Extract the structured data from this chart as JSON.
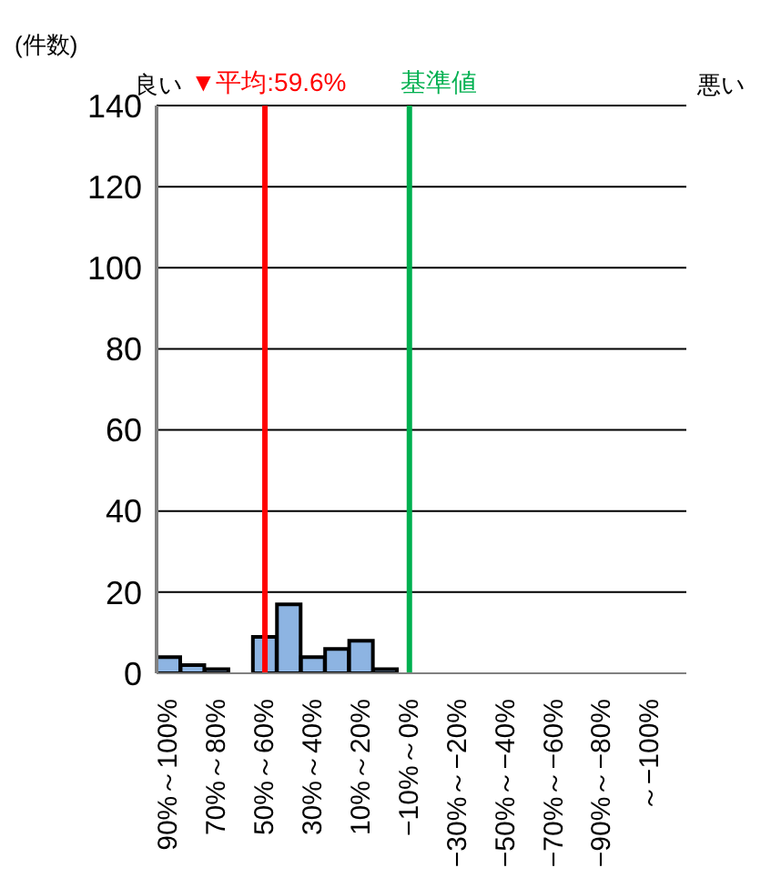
{
  "chart_data": {
    "type": "bar",
    "ylabel": "(件数)",
    "categories": [
      "90%～100%",
      null,
      "70%～80%",
      null,
      "50%～60%",
      null,
      "30%～40%",
      null,
      "10%～20%",
      null,
      "−10%～0%",
      null,
      "−30%～−20%",
      null,
      "−50%～−40%",
      null,
      "−70%～−60%",
      null,
      "−90%～−80%",
      null,
      "～−100%",
      null
    ],
    "values": [
      4,
      2,
      1,
      0,
      9,
      17,
      4,
      6,
      8,
      1,
      0,
      0,
      0,
      0,
      0,
      0,
      0,
      0,
      0,
      0,
      0,
      0
    ],
    "color": "#8db4e2",
    "ylim": [
      0,
      140
    ],
    "yticks": [
      0,
      20,
      40,
      60,
      80,
      100,
      120,
      140
    ],
    "grid": "y",
    "ref_lines": [
      {
        "axis": "x",
        "value": "50%～60%",
        "label": "▼平均:59.6%",
        "color": "#ff0000"
      },
      {
        "axis": "x",
        "value": "−10%～0%",
        "label": "基準値",
        "color": "#00b050"
      }
    ],
    "annotations": [
      "良い",
      "悪い"
    ]
  }
}
